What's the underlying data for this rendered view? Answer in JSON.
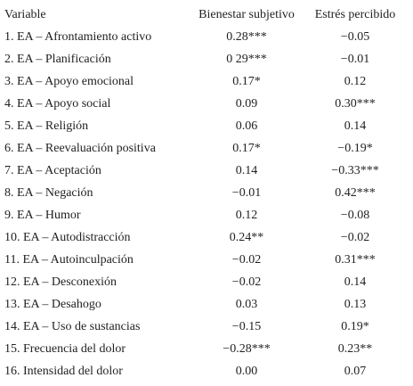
{
  "table": {
    "header": [
      "Variable",
      "Bienestar subjetivo",
      "Estrés percibido"
    ],
    "rows": [
      [
        "1. EA – Afrontamiento activo",
        "0.28***",
        "−0.05"
      ],
      [
        "2. EA – Planificación",
        "0 29***",
        "−0.01"
      ],
      [
        "3. EA – Apoyo emocional",
        "0.17*",
        "0.12"
      ],
      [
        "4. EA – Apoyo social",
        "0.09",
        "0.30***"
      ],
      [
        "5. EA – Religión",
        "0.06",
        "0.14"
      ],
      [
        "6. EA – Reevaluación positiva",
        "0.17*",
        "−0.19*"
      ],
      [
        "7. EA – Aceptación",
        "0.14",
        "−0.33***"
      ],
      [
        "8. EA – Negación",
        "−0.01",
        "0.42***"
      ],
      [
        "9. EA – Humor",
        "0.12",
        "−0.08"
      ],
      [
        "10. EA – Autodistracción",
        "0.24**",
        "−0.02"
      ],
      [
        "11. EA – Autoinculpación",
        "−0.02",
        "0.31***"
      ],
      [
        "12. EA – Desconexión",
        "−0.02",
        "0.14"
      ],
      [
        "13. EA – Desahogo",
        "0.03",
        "0.13"
      ],
      [
        "14. EA – Uso de sustancias",
        "−0.15",
        "0.19*"
      ],
      [
        "15. Frecuencia del dolor",
        "−0.28***",
        "0.23**"
      ],
      [
        "16. Intensidad del dolor",
        "0.00",
        "0.07"
      ]
    ]
  }
}
